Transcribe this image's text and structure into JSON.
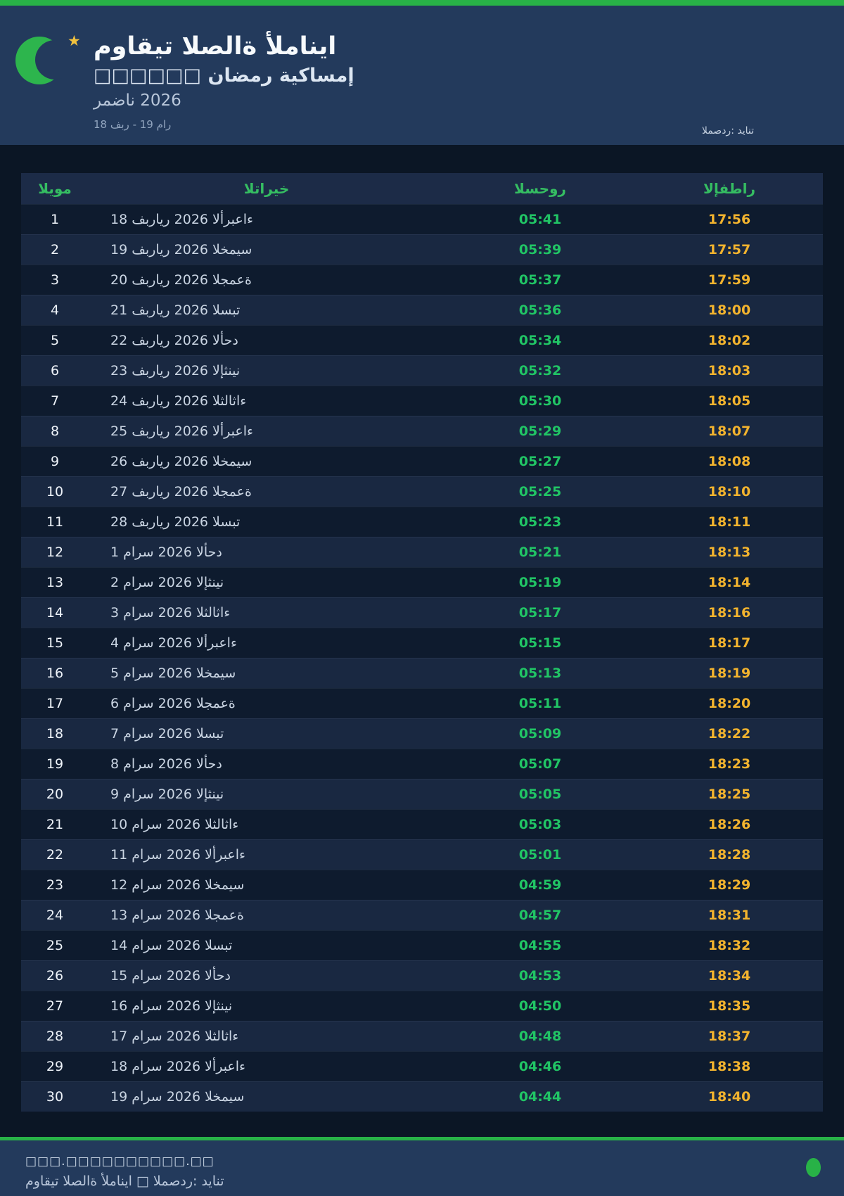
{
  "header": {
    "title": "مواقيت الصلاة ألمانيا",
    "subtitle": "إمساكية رمضان □□□□□□",
    "season": "رمضان 2026",
    "date_range": "18 فبر - 19 مار",
    "source": "المصدر: ديانت",
    "star_glyph": "★"
  },
  "table": {
    "columns": [
      "اليوم",
      "التاريخ",
      "السحور",
      "الإفطار"
    ],
    "rows": [
      {
        "day": "1",
        "date": "18 فبراير 2026 الأربعاء",
        "suhoor": "05:41",
        "iftar": "17:56"
      },
      {
        "day": "2",
        "date": "19 فبراير 2026 الخميس",
        "suhoor": "05:39",
        "iftar": "17:57"
      },
      {
        "day": "3",
        "date": "20 فبراير 2026 الجمعة",
        "suhoor": "05:37",
        "iftar": "17:59"
      },
      {
        "day": "4",
        "date": "21 فبراير 2026 السبت",
        "suhoor": "05:36",
        "iftar": "18:00"
      },
      {
        "day": "5",
        "date": "22 فبراير 2026 الأحد",
        "suhoor": "05:34",
        "iftar": "18:02"
      },
      {
        "day": "6",
        "date": "23 فبراير 2026 الإثنين",
        "suhoor": "05:32",
        "iftar": "18:03"
      },
      {
        "day": "7",
        "date": "24 فبراير 2026 الثلاثاء",
        "suhoor": "05:30",
        "iftar": "18:05"
      },
      {
        "day": "8",
        "date": "25 فبراير 2026 الأربعاء",
        "suhoor": "05:29",
        "iftar": "18:07"
      },
      {
        "day": "9",
        "date": "26 فبراير 2026 الخميس",
        "suhoor": "05:27",
        "iftar": "18:08"
      },
      {
        "day": "10",
        "date": "27 فبراير 2026 الجمعة",
        "suhoor": "05:25",
        "iftar": "18:10"
      },
      {
        "day": "11",
        "date": "28 فبراير 2026 السبت",
        "suhoor": "05:23",
        "iftar": "18:11"
      },
      {
        "day": "12",
        "date": "1 مارس 2026 الأحد",
        "suhoor": "05:21",
        "iftar": "18:13"
      },
      {
        "day": "13",
        "date": "2 مارس 2026 الإثنين",
        "suhoor": "05:19",
        "iftar": "18:14"
      },
      {
        "day": "14",
        "date": "3 مارس 2026 الثلاثاء",
        "suhoor": "05:17",
        "iftar": "18:16"
      },
      {
        "day": "15",
        "date": "4 مارس 2026 الأربعاء",
        "suhoor": "05:15",
        "iftar": "18:17"
      },
      {
        "day": "16",
        "date": "5 مارس 2026 الخميس",
        "suhoor": "05:13",
        "iftar": "18:19"
      },
      {
        "day": "17",
        "date": "6 مارس 2026 الجمعة",
        "suhoor": "05:11",
        "iftar": "18:20"
      },
      {
        "day": "18",
        "date": "7 مارس 2026 السبت",
        "suhoor": "05:09",
        "iftar": "18:22"
      },
      {
        "day": "19",
        "date": "8 مارس 2026 الأحد",
        "suhoor": "05:07",
        "iftar": "18:23"
      },
      {
        "day": "20",
        "date": "9 مارس 2026 الإثنين",
        "suhoor": "05:05",
        "iftar": "18:25"
      },
      {
        "day": "21",
        "date": "10 مارس 2026 الثلاثاء",
        "suhoor": "05:03",
        "iftar": "18:26"
      },
      {
        "day": "22",
        "date": "11 مارس 2026 الأربعاء",
        "suhoor": "05:01",
        "iftar": "18:28"
      },
      {
        "day": "23",
        "date": "12 مارس 2026 الخميس",
        "suhoor": "04:59",
        "iftar": "18:29"
      },
      {
        "day": "24",
        "date": "13 مارس 2026 الجمعة",
        "suhoor": "04:57",
        "iftar": "18:31"
      },
      {
        "day": "25",
        "date": "14 مارس 2026 السبت",
        "suhoor": "04:55",
        "iftar": "18:32"
      },
      {
        "day": "26",
        "date": "15 مارس 2026 الأحد",
        "suhoor": "04:53",
        "iftar": "18:34"
      },
      {
        "day": "27",
        "date": "16 مارس 2026 الإثنين",
        "suhoor": "04:50",
        "iftar": "18:35"
      },
      {
        "day": "28",
        "date": "17 مارس 2026 الثلاثاء",
        "suhoor": "04:48",
        "iftar": "18:37"
      },
      {
        "day": "29",
        "date": "18 مارس 2026 الأربعاء",
        "suhoor": "04:46",
        "iftar": "18:38"
      },
      {
        "day": "30",
        "date": "19 مارس 2026 الخميس",
        "suhoor": "04:44",
        "iftar": "18:40"
      }
    ]
  },
  "footer": {
    "website": "□□□.□□□□□□□□□□.□□",
    "credit": "مواقيت الصلاة ألمانيا □ المصدر: ديانت"
  },
  "colors": {
    "accent_green": "#28b247",
    "crescent_green": "#2db54d",
    "suhoor_green": "#21c565",
    "iftar_amber": "#f2b32e",
    "header_navy": "#233a5c",
    "page_navy": "#0b1625",
    "row_dark": "#0e1b2e",
    "row_light": "#192841",
    "table_header_navy": "#1c2b47",
    "header_text_green": "#35bd62",
    "star_gold": "#f2c23e"
  }
}
